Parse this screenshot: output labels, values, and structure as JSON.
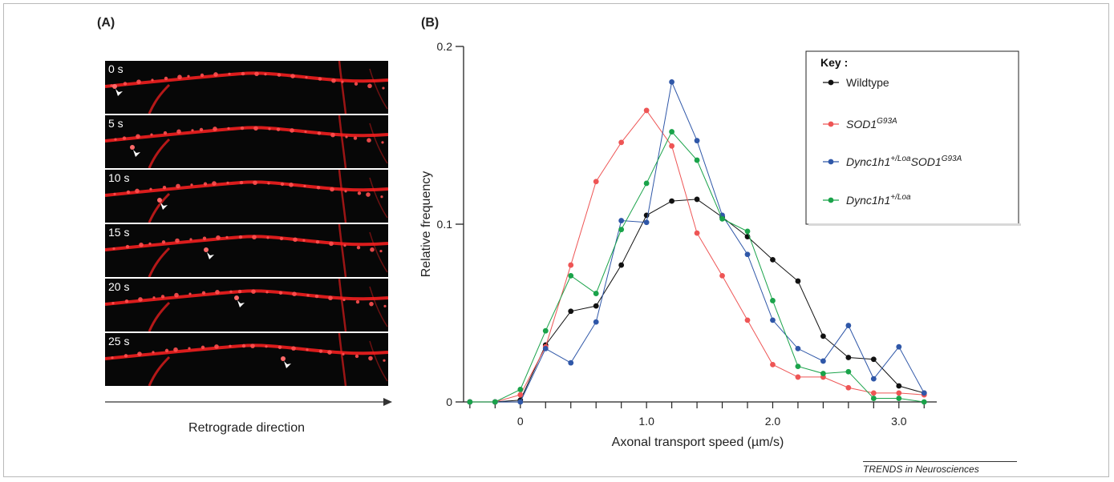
{
  "panel_a": {
    "label": "(A)",
    "frames": [
      "0 s",
      "5 s",
      "10 s",
      "15 s",
      "20 s",
      "25 s"
    ],
    "arrow_label": "Retrograde direction",
    "frame_color": "#ff2020"
  },
  "panel_b": {
    "label": "(B)"
  },
  "credit": "TRENDS in Neurosciences",
  "chart_data": {
    "type": "line",
    "title": "",
    "xlabel": "Axonal transport speed (µm/s)",
    "ylabel": "Relative frequency",
    "xlim": [
      -0.45,
      3.3
    ],
    "ylim": [
      0,
      0.2
    ],
    "x_ticks": [
      0,
      1.0,
      2.0,
      3.0
    ],
    "x_tick_labels": [
      "0",
      "1.0",
      "2.0",
      "3.0"
    ],
    "y_ticks": [
      0,
      0.1,
      0.2
    ],
    "y_tick_labels": [
      "0",
      "0.1",
      "0.2"
    ],
    "grid": false,
    "legend": {
      "title": "Key :",
      "position": "top-right"
    },
    "series": [
      {
        "name": "Wildtype",
        "color": "#111111",
        "x": [
          -0.4,
          -0.2,
          0,
          0.2,
          0.4,
          0.6,
          0.8,
          1.0,
          1.2,
          1.4,
          1.6,
          1.8,
          2.0,
          2.2,
          2.4,
          2.6,
          2.8,
          3.0,
          3.2
        ],
        "y": [
          0,
          0,
          0.001,
          0.032,
          0.051,
          0.054,
          0.077,
          0.105,
          0.113,
          0.114,
          0.104,
          0.093,
          0.08,
          0.068,
          0.037,
          0.025,
          0.024,
          0.009,
          0.005
        ]
      },
      {
        "name": "SOD1",
        "name_sup": "G93A",
        "color": "#ee5555",
        "x": [
          -0.4,
          -0.2,
          0,
          0.2,
          0.4,
          0.6,
          0.8,
          1.0,
          1.2,
          1.4,
          1.6,
          1.8,
          2.0,
          2.2,
          2.4,
          2.6,
          2.8,
          3.0,
          3.2
        ],
        "y": [
          0,
          0,
          0.004,
          0.031,
          0.077,
          0.124,
          0.146,
          0.164,
          0.144,
          0.095,
          0.071,
          0.046,
          0.021,
          0.014,
          0.014,
          0.008,
          0.005,
          0.005,
          0.004
        ]
      },
      {
        "name": "Dync1h1",
        "name_sup": "+/Loa",
        "name_suffix": "SOD1",
        "name_suffix_sup": "G93A",
        "color": "#2f57a8",
        "x": [
          -0.4,
          -0.2,
          0,
          0.2,
          0.4,
          0.6,
          0.8,
          1.0,
          1.2,
          1.4,
          1.6,
          1.8,
          2.0,
          2.2,
          2.4,
          2.6,
          2.8,
          3.0,
          3.2
        ],
        "y": [
          0,
          0,
          0,
          0.03,
          0.022,
          0.045,
          0.102,
          0.101,
          0.18,
          0.147,
          0.105,
          0.083,
          0.046,
          0.03,
          0.023,
          0.043,
          0.013,
          0.031,
          0.005
        ]
      },
      {
        "name": "Dync1h1",
        "name_sup": "+/Loa",
        "color": "#1aa34a",
        "x": [
          -0.4,
          -0.2,
          0,
          0.2,
          0.4,
          0.6,
          0.8,
          1.0,
          1.2,
          1.4,
          1.6,
          1.8,
          2.0,
          2.2,
          2.4,
          2.6,
          2.8,
          3.0,
          3.2
        ],
        "y": [
          0,
          0,
          0.007,
          0.04,
          0.071,
          0.061,
          0.097,
          0.123,
          0.152,
          0.136,
          0.103,
          0.096,
          0.057,
          0.02,
          0.016,
          0.017,
          0.002,
          0.002,
          0
        ]
      }
    ]
  }
}
